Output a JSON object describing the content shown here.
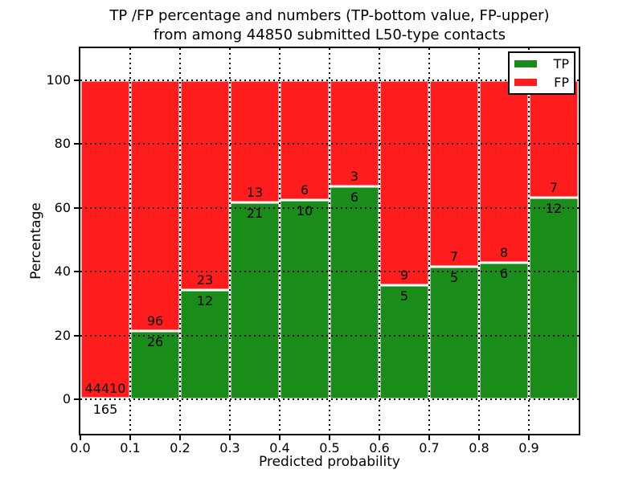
{
  "title": {
    "line1": "TP /FP percentage and numbers (TP-bottom value, FP-upper)",
    "line2": "from among 44850 submitted L50-type contacts"
  },
  "axes": {
    "ylabel": "Percentage",
    "xlabel": "Predicted probability",
    "y_ticks": [
      0,
      20,
      40,
      60,
      80,
      100
    ],
    "x_tick_labels": [
      "0.0",
      "0.1",
      "0.2",
      "0.3",
      "0.4",
      "0.5",
      "0.6",
      "0.7",
      "0.8",
      "0.9"
    ],
    "xlim": [
      0.0,
      1.0
    ],
    "ylim": [
      -11,
      110
    ],
    "grid": "dotted"
  },
  "legend": {
    "position": "upper right",
    "entries": [
      {
        "label": "TP",
        "color": "#1a8c1a"
      },
      {
        "label": "FP",
        "color": "#ff1c1c"
      }
    ]
  },
  "colors": {
    "tp_green": "#1a8c1a",
    "fp_red": "#ff1c1c",
    "gridline": "#000000",
    "background": "#ffffff"
  },
  "chart_data": {
    "type": "bar",
    "stacked": true,
    "normalized_to": 100,
    "title": "TP /FP percentage and numbers (TP-bottom value, FP-upper) from among 44850 submitted L50-type contacts",
    "xlabel": "Predicted probability",
    "ylabel": "Percentage",
    "total_submitted": 44850,
    "bin_width": 0.1,
    "bins": [
      "0.0-0.1",
      "0.1-0.2",
      "0.2-0.3",
      "0.3-0.4",
      "0.4-0.5",
      "0.5-0.6",
      "0.6-0.7",
      "0.7-0.8",
      "0.8-0.9",
      "0.9-1.0"
    ],
    "series": [
      {
        "name": "TP",
        "color": "#1a8c1a",
        "counts": [
          165,
          26,
          12,
          21,
          10,
          6,
          5,
          5,
          6,
          12
        ]
      },
      {
        "name": "FP",
        "color": "#ff1c1c",
        "counts": [
          44410,
          96,
          23,
          13,
          6,
          3,
          9,
          7,
          8,
          7
        ]
      }
    ],
    "tp_percent": [
      0.37,
      21.31,
      34.29,
      61.76,
      62.5,
      66.67,
      35.71,
      41.67,
      42.86,
      63.16
    ]
  }
}
